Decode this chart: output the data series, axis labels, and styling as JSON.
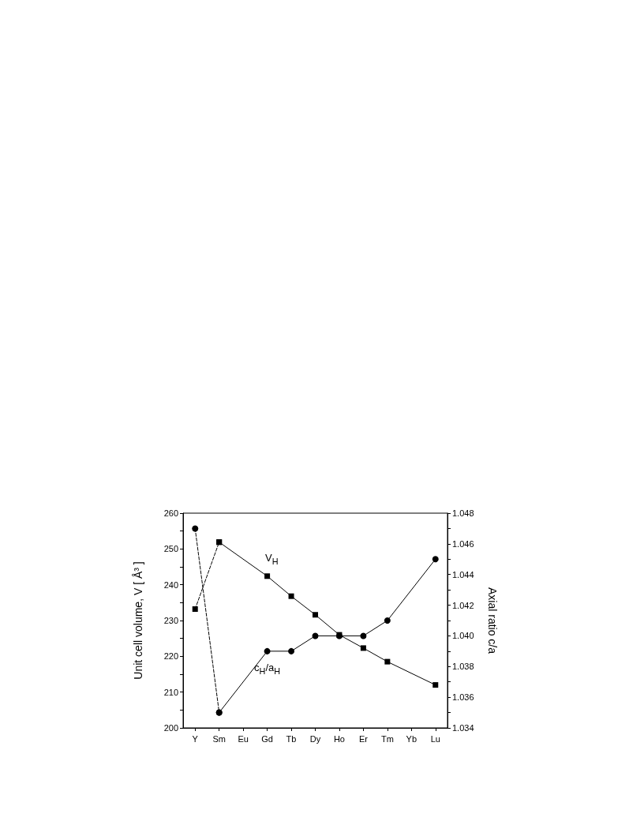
{
  "chart_data": {
    "type": "line",
    "categories": [
      "Y",
      "Sm",
      "Eu",
      "Gd",
      "Tb",
      "Dy",
      "Ho",
      "Er",
      "Tm",
      "Yb",
      "Lu"
    ],
    "series": [
      {
        "name": "V$_{H}$",
        "color": "#000000",
        "marker": "square",
        "line_style": "solid",
        "values": [
          null,
          251.9,
          null,
          242.4,
          236.8,
          231.6,
          226.0,
          222.3,
          218.5,
          null,
          212.0
        ]
      },
      {
        "color": "#000000",
        "marker": "square",
        "line_style": "dashed",
        "values": [
          233.2,
          251.9,
          null,
          null,
          null,
          null,
          null,
          null,
          null,
          null,
          null
        ]
      },
      {
        "name": "c$_{H}$/a$_{H}$",
        "color": "#000000",
        "marker": "circle",
        "line_style": "solid",
        "axis": "y2",
        "values": [
          null,
          1.035,
          null,
          1.039,
          1.039,
          1.04,
          1.04,
          1.04,
          1.041,
          null,
          1.045
        ]
      },
      {
        "color": "#000000",
        "marker": "circle",
        "line_style": "dashed",
        "axis": "y2",
        "values": [
          1.047,
          1.035,
          null,
          null,
          null,
          null,
          null,
          null,
          null,
          null,
          null
        ]
      }
    ],
    "ylabel": "Unit cell volume, V [ Å³ ]",
    "y2label": "Axial ratio c/a",
    "ylim": [
      200,
      260
    ],
    "yticks": [
      200,
      {
        "value": 205,
        "label": null
      },
      210,
      {
        "value": 215,
        "label": null
      },
      220,
      {
        "value": 225,
        "label": null
      },
      230,
      {
        "value": 235,
        "label": null
      },
      240,
      {
        "value": 245,
        "label": null
      },
      250,
      {
        "value": 255,
        "label": null
      },
      260
    ],
    "y2lim": [
      1.034,
      1.048
    ],
    "y2ticks": [
      1.034,
      {
        "value": 1.035,
        "label": null
      },
      1.036,
      {
        "value": 1.037,
        "label": null
      },
      1.038,
      {
        "value": 1.039,
        "label": null
      },
      {
        "value": 1.04,
        "label": "1.040"
      },
      {
        "value": 1.041,
        "label": null
      },
      1.042,
      {
        "value": 1.043,
        "label": null
      },
      1.044,
      {
        "value": 1.045,
        "label": null
      },
      1.046,
      {
        "value": 1.047,
        "label": null
      },
      1.048
    ],
    "grid": false,
    "legend": false
  }
}
